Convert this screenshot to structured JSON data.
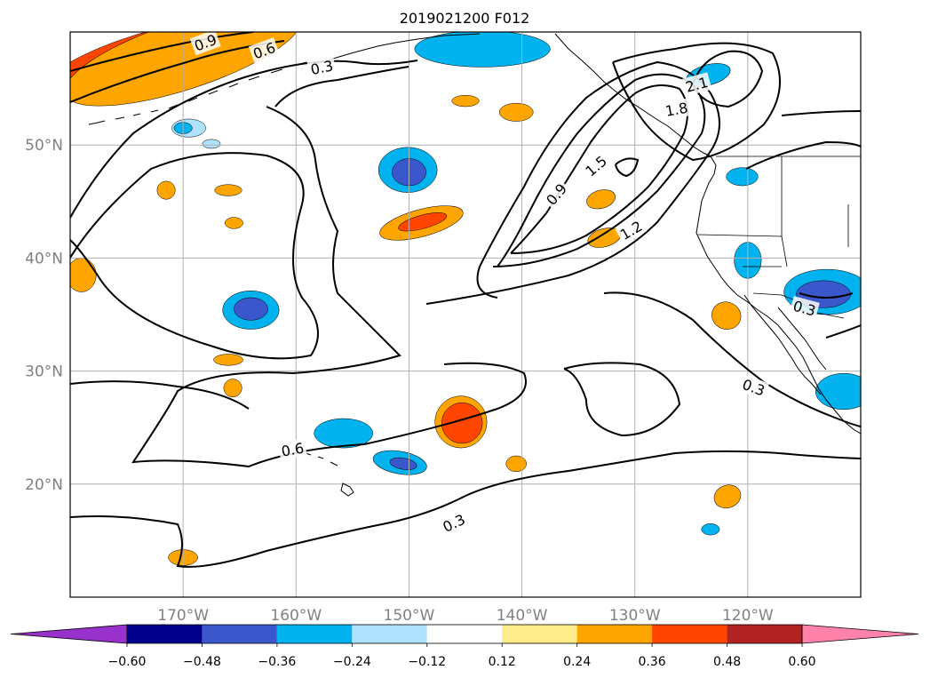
{
  "title": "2019021200 F012",
  "map": {
    "lat_range": [
      10,
      60
    ],
    "lon_range": [
      -180,
      -110
    ],
    "lat_gridlines": [
      {
        "lat": 20,
        "label": "20°N"
      },
      {
        "lat": 30,
        "label": "30°N"
      },
      {
        "lat": 40,
        "label": "40°N"
      },
      {
        "lat": 50,
        "label": "50°N"
      }
    ],
    "lon_gridlines": [
      {
        "lon": -170,
        "label": "170°W"
      },
      {
        "lon": -160,
        "label": "160°W"
      },
      {
        "lon": -150,
        "label": "150°W"
      },
      {
        "lon": -140,
        "label": "140°W"
      },
      {
        "lon": -130,
        "label": "130°W"
      },
      {
        "lon": -120,
        "label": "120°W"
      }
    ],
    "contour_labels": [
      {
        "text": "0.9",
        "lat": 59.0,
        "lon": -168.0,
        "rotate": -20
      },
      {
        "text": "0.6",
        "lat": 58.3,
        "lon": -162.8,
        "rotate": -20
      },
      {
        "text": "0.3",
        "lat": 56.8,
        "lon": -157.7,
        "rotate": -12
      },
      {
        "text": "2.1",
        "lat": 55.3,
        "lon": -124.5,
        "rotate": -15
      },
      {
        "text": "1.8",
        "lat": 53.1,
        "lon": -126.3,
        "rotate": -10
      },
      {
        "text": "1.5",
        "lat": 48.1,
        "lon": -133.4,
        "rotate": -40
      },
      {
        "text": "0.9",
        "lat": 45.6,
        "lon": -136.9,
        "rotate": -50
      },
      {
        "text": "1.2",
        "lat": 42.4,
        "lon": -130.3,
        "rotate": -30
      },
      {
        "text": "0.3",
        "lat": 35.5,
        "lon": -115.0,
        "rotate": 15
      },
      {
        "text": "0.3",
        "lat": 28.5,
        "lon": -119.5,
        "rotate": 20
      },
      {
        "text": "0.6",
        "lat": 23.0,
        "lon": -160.3,
        "rotate": -10
      },
      {
        "text": "0.3",
        "lat": 16.5,
        "lon": -146.0,
        "rotate": -25
      }
    ],
    "shading": [
      {
        "color": "#ff4500",
        "lat": 57.5,
        "lon": -174.0,
        "rlat": 2.2,
        "rlon": 9.0,
        "rotate": -18
      },
      {
        "color": "#ffa500",
        "lat": 57.9,
        "lon": -170.0,
        "rlat": 3.0,
        "rlon": 11.0,
        "rotate": -18
      },
      {
        "color": "#3a57cc",
        "lat": 58.2,
        "lon": -143.0,
        "rlat": 1.2,
        "rlon": 4.5,
        "rotate": 0
      },
      {
        "color": "#00b2ee",
        "lat": 58.5,
        "lon": -143.5,
        "rlat": 1.6,
        "rlon": 6.0,
        "rotate": 0
      },
      {
        "color": "#00b2ee",
        "lat": 47.8,
        "lon": -150.1,
        "rlat": 2.0,
        "rlon": 2.6,
        "rotate": 0
      },
      {
        "color": "#3a57cc",
        "lat": 47.6,
        "lon": -150.0,
        "rlat": 1.2,
        "rlon": 1.5,
        "rotate": 0
      },
      {
        "color": "#ffa500",
        "lat": 43.1,
        "lon": -148.9,
        "rlat": 1.2,
        "rlon": 3.8,
        "rotate": -15
      },
      {
        "color": "#ff4500",
        "lat": 43.2,
        "lon": -148.8,
        "rlat": 0.6,
        "rlon": 2.2,
        "rotate": -15
      },
      {
        "color": "#00b2ee",
        "lat": 35.4,
        "lon": -164.0,
        "rlat": 1.7,
        "rlon": 2.5,
        "rotate": 0
      },
      {
        "color": "#3a57cc",
        "lat": 35.5,
        "lon": -164.0,
        "rlat": 1.0,
        "rlon": 1.5,
        "rotate": 0
      },
      {
        "color": "#ffa500",
        "lat": 25.5,
        "lon": -145.4,
        "rlat": 2.3,
        "rlon": 2.3,
        "rotate": 0
      },
      {
        "color": "#ff4500",
        "lat": 25.4,
        "lon": -145.3,
        "rlat": 1.8,
        "rlon": 1.8,
        "rotate": 0
      },
      {
        "color": "#00b2ee",
        "lat": 24.5,
        "lon": -155.8,
        "rlat": 1.3,
        "rlon": 2.6,
        "rotate": 0
      },
      {
        "color": "#00b2ee",
        "lat": 21.9,
        "lon": -150.8,
        "rlat": 1.0,
        "rlon": 2.4,
        "rotate": 10
      },
      {
        "color": "#3a57cc",
        "lat": 21.8,
        "lon": -150.5,
        "rlat": 0.5,
        "rlon": 1.2,
        "rotate": 10
      },
      {
        "color": "#ffa500",
        "lat": 45.2,
        "lon": -133.0,
        "rlat": 0.8,
        "rlon": 1.3,
        "rotate": -15
      },
      {
        "color": "#ffa500",
        "lat": 41.8,
        "lon": -132.7,
        "rlat": 0.8,
        "rlon": 1.5,
        "rotate": -15
      },
      {
        "color": "#ffa500",
        "lat": 52.9,
        "lon": -140.5,
        "rlat": 0.8,
        "rlon": 1.5,
        "rotate": 0
      },
      {
        "color": "#ffa500",
        "lat": 53.9,
        "lon": -145.0,
        "rlat": 0.5,
        "rlon": 1.2,
        "rotate": 0
      },
      {
        "color": "#00b2ee",
        "lat": 56.2,
        "lon": -123.5,
        "rlat": 0.9,
        "rlon": 2.0,
        "rotate": -15
      },
      {
        "color": "#00b2ee",
        "lat": 37.0,
        "lon": -113.0,
        "rlat": 2.0,
        "rlon": 3.8,
        "rotate": 0
      },
      {
        "color": "#3a57cc",
        "lat": 36.8,
        "lon": -113.3,
        "rlat": 1.2,
        "rlon": 2.4,
        "rotate": 0
      },
      {
        "color": "#00b2ee",
        "lat": 39.8,
        "lon": -120.0,
        "rlat": 1.6,
        "rlon": 1.2,
        "rotate": 0
      },
      {
        "color": "#00b2ee",
        "lat": 47.2,
        "lon": -120.5,
        "rlat": 0.8,
        "rlon": 1.4,
        "rotate": 0
      },
      {
        "color": "#00b2ee",
        "lat": 28.2,
        "lon": -111.5,
        "rlat": 1.6,
        "rlon": 2.5,
        "rotate": 0
      },
      {
        "color": "#ffa500",
        "lat": 34.9,
        "lon": -121.9,
        "rlat": 1.2,
        "rlon": 1.3,
        "rotate": 20
      },
      {
        "color": "#ffa500",
        "lat": 38.5,
        "lon": -179.0,
        "rlat": 1.5,
        "rlon": 1.3,
        "rotate": 0
      },
      {
        "color": "#ffa500",
        "lat": 46.0,
        "lon": -171.5,
        "rlat": 0.8,
        "rlon": 0.8,
        "rotate": 0
      },
      {
        "color": "#ffa500",
        "lat": 46.0,
        "lon": -166.0,
        "rlat": 0.5,
        "rlon": 1.2,
        "rotate": 0
      },
      {
        "color": "#ffa500",
        "lat": 43.1,
        "lon": -165.5,
        "rlat": 0.5,
        "rlon": 0.8,
        "rotate": 0
      },
      {
        "color": "#ffa500",
        "lat": 31.0,
        "lon": -166.0,
        "rlat": 0.5,
        "rlon": 1.3,
        "rotate": 0
      },
      {
        "color": "#ffa500",
        "lat": 28.5,
        "lon": -165.6,
        "rlat": 0.8,
        "rlon": 0.8,
        "rotate": 0
      },
      {
        "color": "#ffa500",
        "lat": 21.8,
        "lon": -140.5,
        "rlat": 0.7,
        "rlon": 0.9,
        "rotate": 0
      },
      {
        "color": "#ffa500",
        "lat": 18.9,
        "lon": -121.8,
        "rlat": 1.0,
        "rlon": 1.2,
        "rotate": -20
      },
      {
        "color": "#ffa500",
        "lat": 13.5,
        "lon": -170.0,
        "rlat": 0.7,
        "rlon": 1.3,
        "rotate": 0
      },
      {
        "color": "#00b2ee",
        "lat": 16.0,
        "lon": -123.3,
        "rlat": 0.5,
        "rlon": 0.8,
        "rotate": 0
      },
      {
        "color": "#b0e2ff",
        "lat": 51.5,
        "lon": -169.5,
        "rlat": 0.8,
        "rlon": 1.5,
        "rotate": 0
      },
      {
        "color": "#00b2ee",
        "lat": 51.5,
        "lon": -170.0,
        "rlat": 0.5,
        "rlon": 0.8,
        "rotate": 0
      },
      {
        "color": "#b0e2ff",
        "lat": 50.1,
        "lon": -167.5,
        "rlat": 0.4,
        "rlon": 0.8,
        "rotate": 0
      }
    ]
  },
  "colorbar": {
    "colors": [
      "#9932cc",
      "#00008b",
      "#3a57cc",
      "#00b2ee",
      "#b0e2ff",
      "#ffffff",
      "#ffec8b",
      "#ffa500",
      "#ff4500",
      "#b22222",
      "#ff82ab"
    ],
    "tick_labels": [
      "−0.60",
      "−0.48",
      "−0.36",
      "−0.24",
      "−0.12",
      "0.12",
      "0.24",
      "0.36",
      "0.48",
      "0.60"
    ]
  }
}
